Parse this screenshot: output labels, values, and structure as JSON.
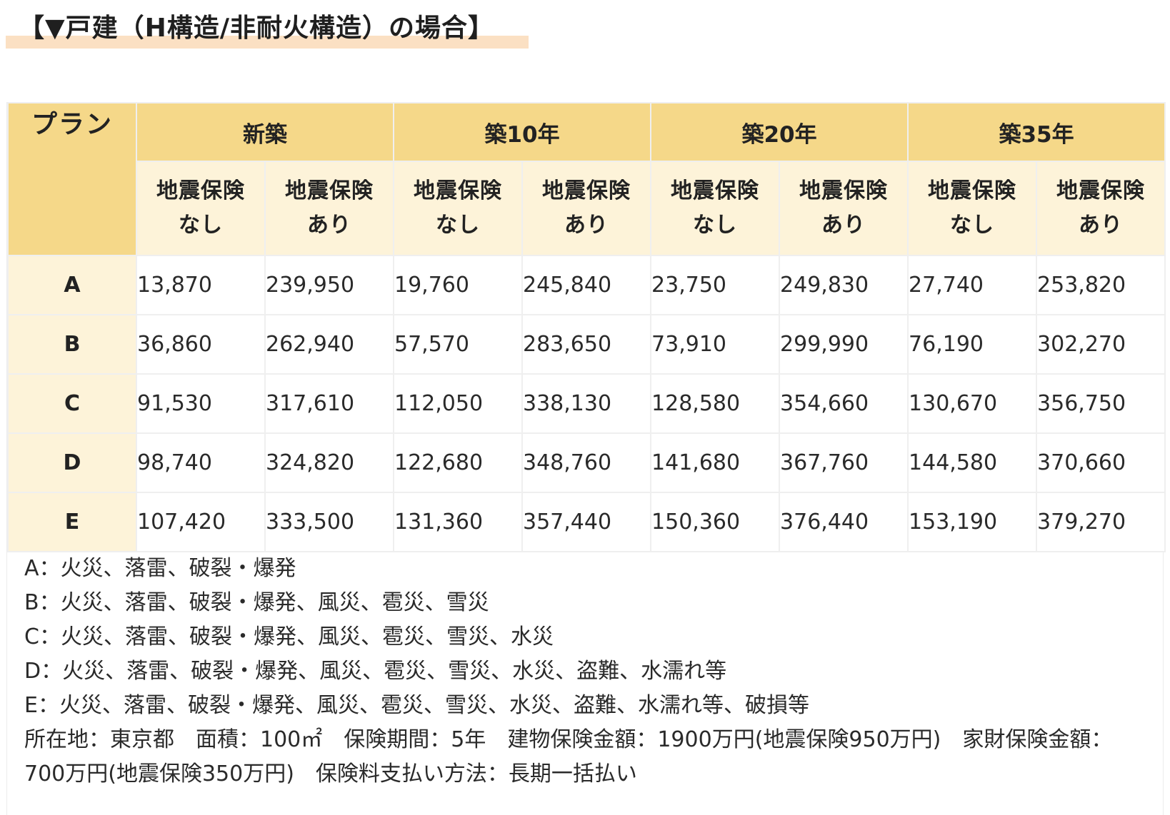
{
  "heading": "【▼戸建（H構造/非耐火構造）の場合】",
  "table": {
    "plan_header": "プラン",
    "age_groups": [
      "新築",
      "築10年",
      "築20年",
      "築35年"
    ],
    "sub_headers": [
      {
        "line1": "地震保険",
        "line2": "なし"
      },
      {
        "line1": "地震保険",
        "line2": "あり"
      },
      {
        "line1": "地震保険",
        "line2": "なし"
      },
      {
        "line1": "地震保険",
        "line2": "あり"
      },
      {
        "line1": "地震保険",
        "line2": "なし"
      },
      {
        "line1": "地震保険",
        "line2": "あり"
      },
      {
        "line1": "地震保険",
        "line2": "なし"
      },
      {
        "line1": "地震保険",
        "line2": "あり"
      }
    ],
    "rows": [
      {
        "plan": "A",
        "values": [
          "13,870",
          "239,950",
          "19,760",
          "245,840",
          "23,750",
          "249,830",
          "27,740",
          "253,820"
        ]
      },
      {
        "plan": "B",
        "values": [
          "36,860",
          "262,940",
          "57,570",
          "283,650",
          "73,910",
          "299,990",
          "76,190",
          "302,270"
        ]
      },
      {
        "plan": "C",
        "values": [
          "91,530",
          "317,610",
          "112,050",
          "338,130",
          "128,580",
          "354,660",
          "130,670",
          "356,750"
        ]
      },
      {
        "plan": "D",
        "values": [
          "98,740",
          "324,820",
          "122,680",
          "348,760",
          "141,680",
          "367,760",
          "144,580",
          "370,660"
        ]
      },
      {
        "plan": "E",
        "values": [
          "107,420",
          "333,500",
          "131,360",
          "357,440",
          "150,360",
          "376,440",
          "153,190",
          "379,270"
        ]
      }
    ]
  },
  "notes": {
    "plan_a": "A：火災、落雷、破裂・爆発",
    "plan_b": "B：火災、落雷、破裂・爆発、風災、雹災、雪災",
    "plan_c": "C：火災、落雷、破裂・爆発、風災、雹災、雪災、水災",
    "plan_d": "D：火災、落雷、破裂・爆発、風災、雹災、雪災、水災、盗難、水濡れ等",
    "plan_e": "E：火災、落雷、破裂・爆発、風災、雹災、雪災、水災、盗難、水濡れ等、破損等",
    "conditions": "所在地：東京都　面積：100㎡　保険期間：5年　建物保険金額：1900万円(地震保険950万円)　家財保険金額：700万円(地震保険350万円)　保険料支払い方法：長期一括払い"
  }
}
